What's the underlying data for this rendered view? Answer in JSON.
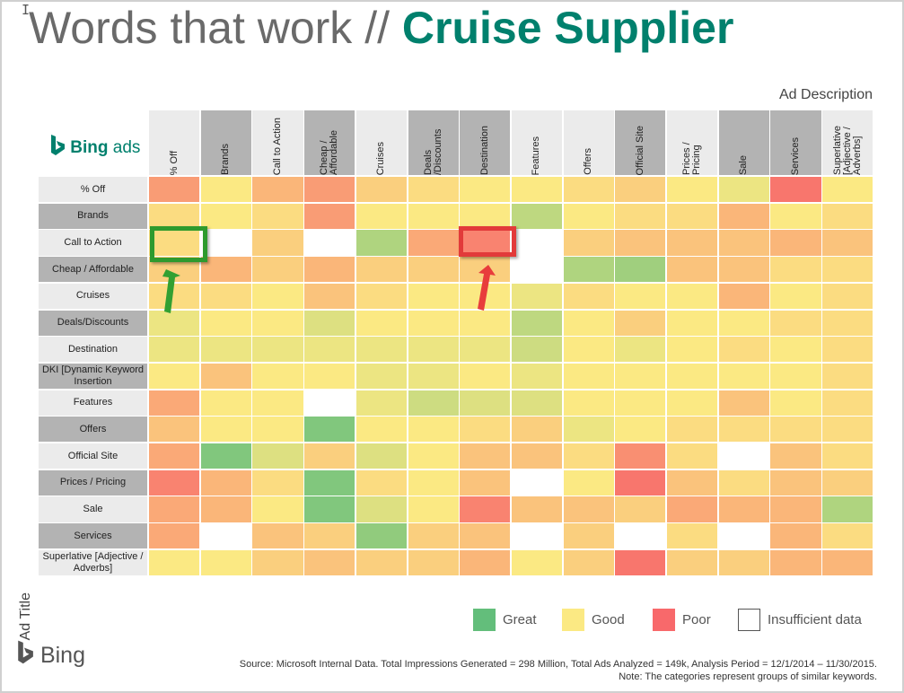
{
  "title": {
    "prefix": "Words that work //",
    "highlight": "Cruise Supplier"
  },
  "brand": {
    "bing_ads": "Bing",
    "bing_ads_suffix": "ads",
    "bing": "Bing"
  },
  "axis": {
    "x_label": "Ad Description",
    "y_label": "Ad Title"
  },
  "colors": {
    "great": "#63be7b",
    "good": "#fbe983",
    "poor": "#f8696b",
    "insufficient": "#ffffff",
    "brand": "#00806d"
  },
  "legend": [
    {
      "label": "Great",
      "color": "#63be7b"
    },
    {
      "label": "Good",
      "color": "#fbe983"
    },
    {
      "label": "Poor",
      "color": "#f8696b"
    },
    {
      "label": "Insufficient data",
      "color": "#ffffff"
    }
  ],
  "source": {
    "line1": "Source: Microsoft Internal Data. Total Impressions Generated = 298 Million, Total Ads Analyzed = 149k, Analysis Period = 12/1/2014 – 11/30/2015.",
    "line2": "Note: The categories represent groups of similar keywords."
  },
  "chart_data": {
    "type": "heatmap",
    "xlabel": "Ad Description",
    "ylabel": "Ad Title",
    "columns": [
      "% Off",
      "Brands",
      "Call to Action",
      "Cheap / Affordable",
      "Cruises",
      "Deals /Discounts",
      "Destination",
      "Features",
      "Offers",
      "Official Site",
      "Prices / Pricing",
      "Sale",
      "Services",
      "Superlative [Adjective / Adverbs]"
    ],
    "rows": [
      "% Off",
      "Brands",
      "Call to Action",
      "Cheap / Affordable",
      "Cruises",
      "Deals/Discounts",
      "Destination",
      "DKI [Dynamic Keyword Insertion",
      "Features",
      "Offers",
      "Official Site",
      "Prices / Pricing",
      "Sale",
      "Services",
      "Superlative [Adjective / Adverbs]"
    ],
    "scale": "-1 = insufficient data; 0 = great (green) ... 0.5 = good (yellow) ... 1 = poor (red)",
    "values": [
      [
        0.8,
        0.5,
        0.7,
        0.8,
        0.6,
        0.55,
        0.5,
        0.5,
        0.55,
        0.6,
        0.5,
        0.45,
        0.95,
        0.5
      ],
      [
        0.55,
        0.5,
        0.55,
        0.8,
        0.5,
        0.5,
        0.5,
        0.3,
        0.5,
        0.55,
        0.55,
        0.7,
        0.5,
        0.55
      ],
      [
        0.55,
        -1,
        0.6,
        -1,
        0.25,
        0.75,
        0.9,
        -1,
        0.6,
        0.65,
        0.65,
        0.65,
        0.7,
        0.65
      ],
      [
        0.6,
        0.7,
        0.6,
        0.7,
        0.6,
        0.6,
        0.6,
        -1,
        0.25,
        0.2,
        0.65,
        0.65,
        0.55,
        0.55
      ],
      [
        0.55,
        0.55,
        0.5,
        0.65,
        0.55,
        0.5,
        0.5,
        0.45,
        0.55,
        0.5,
        0.5,
        0.7,
        0.5,
        0.55
      ],
      [
        0.45,
        0.5,
        0.5,
        0.4,
        0.5,
        0.5,
        0.5,
        0.3,
        0.5,
        0.6,
        0.5,
        0.5,
        0.55,
        0.55
      ],
      [
        0.45,
        0.45,
        0.45,
        0.45,
        0.45,
        0.45,
        0.45,
        0.35,
        0.5,
        0.45,
        0.5,
        0.55,
        0.5,
        0.55
      ],
      [
        0.5,
        0.65,
        0.5,
        0.5,
        0.45,
        0.45,
        0.5,
        0.45,
        0.5,
        0.5,
        0.5,
        0.5,
        0.5,
        0.55
      ],
      [
        0.75,
        0.5,
        0.5,
        -1,
        0.45,
        0.35,
        0.4,
        0.4,
        0.5,
        0.5,
        0.5,
        0.65,
        0.5,
        0.55
      ],
      [
        0.65,
        0.5,
        0.5,
        0.1,
        0.5,
        0.5,
        0.55,
        0.6,
        0.45,
        0.5,
        0.55,
        0.55,
        0.55,
        0.55
      ],
      [
        0.75,
        0.1,
        0.4,
        0.6,
        0.4,
        0.5,
        0.65,
        0.65,
        0.55,
        0.85,
        0.55,
        -1,
        0.65,
        0.55
      ],
      [
        0.9,
        0.7,
        0.55,
        0.1,
        0.55,
        0.5,
        0.65,
        -1,
        0.5,
        0.95,
        0.65,
        0.55,
        0.65,
        0.6
      ],
      [
        0.75,
        0.7,
        0.5,
        0.1,
        0.4,
        0.5,
        0.9,
        0.65,
        0.65,
        0.6,
        0.75,
        0.7,
        0.7,
        0.25
      ],
      [
        0.75,
        -1,
        0.65,
        0.6,
        0.15,
        0.6,
        0.65,
        -1,
        0.6,
        -1,
        0.55,
        -1,
        0.7,
        0.55
      ],
      [
        0.5,
        0.5,
        0.6,
        0.65,
        0.6,
        0.6,
        0.7,
        0.5,
        0.6,
        0.95,
        0.6,
        0.6,
        0.7,
        0.7
      ]
    ]
  }
}
